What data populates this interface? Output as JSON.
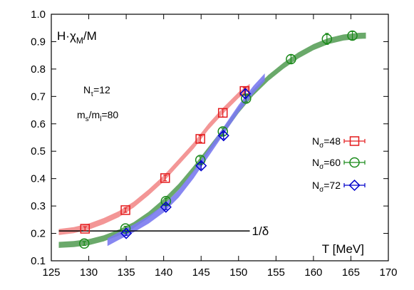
{
  "chart_data": {
    "type": "scatter",
    "ylabel": "H·χ_M/M",
    "xlabel": "T [MeV]",
    "xlim": [
      125,
      170
    ],
    "ylim": [
      0.1,
      1.0
    ],
    "x_ticks": [
      125,
      130,
      135,
      140,
      145,
      150,
      155,
      160,
      165,
      170
    ],
    "y_ticks": [
      0.1,
      0.2,
      0.3,
      0.4,
      0.5,
      0.6,
      0.7,
      0.8,
      0.9,
      1.0
    ],
    "grid": false,
    "legend_position": "right",
    "annotations": {
      "ntau": {
        "base": "N",
        "sub": "τ",
        "rest": "=12"
      },
      "mass": {
        "a": "m",
        "a_sub": "s",
        "mid": "/m",
        "b_sub": "l",
        "rest": "=80"
      },
      "delta_label": "1/δ",
      "delta_value": 0.209,
      "delta_range": [
        126,
        151.5
      ]
    },
    "series": [
      {
        "name": "N_σ=48",
        "legend": {
          "base": "N",
          "sub": "σ",
          "rest": "=48"
        },
        "color": "#e41a1c",
        "band_color": "#f28b8b",
        "marker": "square",
        "points": [
          {
            "x": 129.5,
            "y": 0.217,
            "err": 0.007
          },
          {
            "x": 134.9,
            "y": 0.285,
            "err": 0.008
          },
          {
            "x": 140.2,
            "y": 0.402,
            "err": 0.01
          },
          {
            "x": 144.9,
            "y": 0.545,
            "err": 0.012
          },
          {
            "x": 147.9,
            "y": 0.64,
            "err": 0.015
          },
          {
            "x": 150.8,
            "y": 0.72,
            "err": 0.012
          }
        ],
        "band": {
          "x": [
            126,
            128,
            130,
            132,
            134,
            136,
            138,
            140,
            142,
            144,
            146,
            148,
            150,
            151.5
          ],
          "y": [
            0.205,
            0.212,
            0.225,
            0.245,
            0.27,
            0.305,
            0.35,
            0.4,
            0.46,
            0.52,
            0.59,
            0.65,
            0.705,
            0.735
          ],
          "half_width": 0.011
        }
      },
      {
        "name": "N_σ=60",
        "legend": {
          "base": "N",
          "sub": "σ",
          "rest": "=60"
        },
        "color": "#1a8a1a",
        "band_color": "#5aa05a",
        "marker": "circle",
        "points": [
          {
            "x": 129.4,
            "y": 0.163,
            "err": 0.007
          },
          {
            "x": 134.9,
            "y": 0.218,
            "err": 0.008
          },
          {
            "x": 140.3,
            "y": 0.318,
            "err": 0.01
          },
          {
            "x": 144.9,
            "y": 0.468,
            "err": 0.012
          },
          {
            "x": 147.9,
            "y": 0.572,
            "err": 0.012
          },
          {
            "x": 151.0,
            "y": 0.692,
            "err": 0.012
          },
          {
            "x": 157.0,
            "y": 0.836,
            "err": 0.015
          },
          {
            "x": 161.8,
            "y": 0.91,
            "err": 0.02
          },
          {
            "x": 165.2,
            "y": 0.922,
            "err": 0.015
          }
        ],
        "band": {
          "x": [
            126,
            128,
            130,
            132,
            134,
            136,
            138,
            140,
            142,
            144,
            146,
            148,
            150,
            152,
            154,
            156,
            158,
            160,
            162,
            164,
            166,
            167
          ],
          "y": [
            0.158,
            0.161,
            0.168,
            0.182,
            0.203,
            0.23,
            0.268,
            0.315,
            0.37,
            0.435,
            0.505,
            0.575,
            0.65,
            0.715,
            0.768,
            0.812,
            0.85,
            0.88,
            0.902,
            0.915,
            0.921,
            0.922
          ],
          "half_width": 0.011
        }
      },
      {
        "name": "N_σ=72",
        "legend": {
          "base": "N",
          "sub": "σ",
          "rest": "=72"
        },
        "color": "#0000cc",
        "band_color": "#7a7af0",
        "marker": "diamond",
        "points": [
          {
            "x": 135.0,
            "y": 0.2,
            "err": 0.007
          },
          {
            "x": 140.3,
            "y": 0.296,
            "err": 0.009
          },
          {
            "x": 145.0,
            "y": 0.447,
            "err": 0.012
          },
          {
            "x": 148.0,
            "y": 0.557,
            "err": 0.012
          },
          {
            "x": 150.9,
            "y": 0.71,
            "err": 0.015
          }
        ],
        "band": {
          "x": [
            132.5,
            134,
            136,
            138,
            140,
            142,
            144,
            146,
            148,
            150,
            152,
            153.5
          ],
          "y": [
            0.168,
            0.19,
            0.218,
            0.25,
            0.29,
            0.345,
            0.415,
            0.495,
            0.575,
            0.655,
            0.725,
            0.77
          ],
          "half_width": 0.014
        }
      }
    ]
  }
}
